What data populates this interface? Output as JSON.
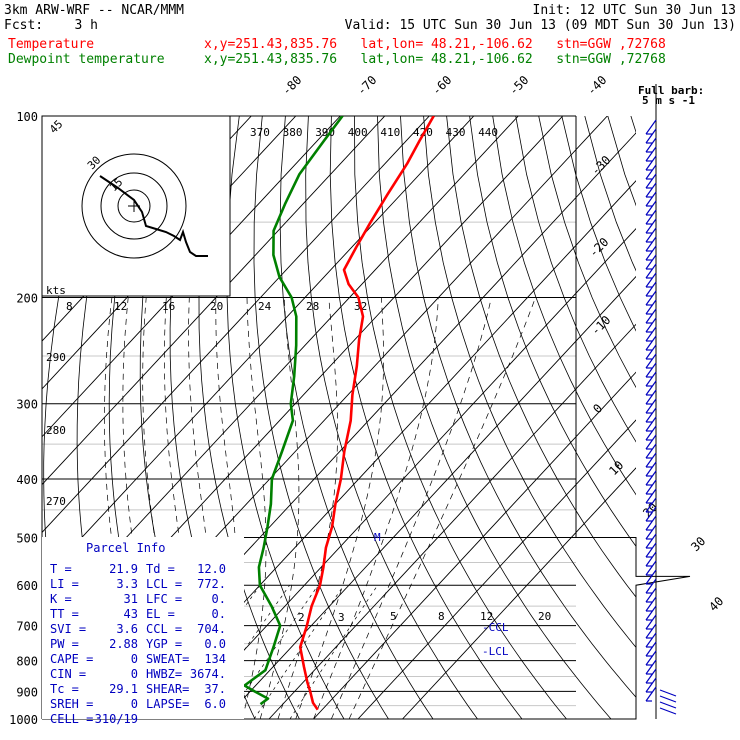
{
  "header": {
    "model": "3km ARW-WRF -- NCAR/MMM",
    "init": "Init: 12 UTC Sun 30 Jun 13",
    "fcst": "Fcst:    3 h",
    "valid": "Valid: 15 UTC Sun 30 Jun 13 (09 MDT Sun 30 Jun 13)",
    "temp_label": "Temperature",
    "dew_label": "Dewpoint temperature",
    "location": "x,y=251.43,835.76   lat,lon= 48.21,-106.62   stn=GGW ,72768"
  },
  "colors": {
    "temperature": "#ff0000",
    "dewpoint": "#008000",
    "parcel_text": "#0000c0",
    "barb": "#0000c0"
  },
  "chart_data": {
    "type": "line",
    "title": "",
    "xlabel": "",
    "ylabel": "",
    "y_scale": "log-pressure",
    "ylim": [
      1000,
      100
    ],
    "pressure_ticks": [
      100,
      200,
      300,
      400,
      500,
      600,
      700,
      800,
      900,
      1000
    ],
    "isotherm_labels": [
      "-80",
      "-70",
      "-60",
      "-50",
      "-40",
      "-30",
      "-20",
      "-10",
      "0",
      "10",
      "20",
      "30",
      "40"
    ],
    "theta_labels": [
      "370",
      "380",
      "390",
      "400",
      "410",
      "420",
      "430",
      "440"
    ],
    "theta_left_labels": [
      "290",
      "280",
      "270"
    ],
    "mixing_ratio_labels": [
      "2",
      "3",
      "5",
      "8",
      "12",
      "20"
    ],
    "hodograph": {
      "kts_label": "kts",
      "speed_labels": [
        "8",
        "12",
        "16",
        "20",
        "24",
        "28",
        "32"
      ],
      "ring_labels": [
        "15",
        "30",
        "45"
      ]
    },
    "lcl_labels": [
      "CCL",
      "LCL"
    ],
    "barb_header": [
      "Full barb",
      "5 m s"
    ],
    "series": [
      {
        "name": "Temperature",
        "color": "#ff0000",
        "points": [
          [
            965,
            29.0
          ],
          [
            940,
            26.5
          ],
          [
            900,
            23.5
          ],
          [
            870,
            21.0
          ],
          [
            820,
            17.0
          ],
          [
            760,
            12.0
          ],
          [
            700,
            9.0
          ],
          [
            650,
            6.0
          ],
          [
            600,
            3.5
          ],
          [
            560,
            0.5
          ],
          [
            520,
            -3.0
          ],
          [
            480,
            -6.0
          ],
          [
            440,
            -10.0
          ],
          [
            400,
            -14.0
          ],
          [
            360,
            -19.0
          ],
          [
            320,
            -24.0
          ],
          [
            290,
            -29.0
          ],
          [
            260,
            -34.0
          ],
          [
            235,
            -39.0
          ],
          [
            215,
            -43.0
          ],
          [
            200,
            -48.0
          ],
          [
            190,
            -53.0
          ],
          [
            180,
            -57.0
          ],
          [
            165,
            -59.0
          ],
          [
            150,
            -61.0
          ],
          [
            135,
            -63.0
          ],
          [
            120,
            -65.0
          ],
          [
            110,
            -67.0
          ],
          [
            100,
            -69.0
          ]
        ]
      },
      {
        "name": "Dewpoint temperature",
        "color": "#008000",
        "points": [
          [
            945,
            15.0
          ],
          [
            925,
            15.5
          ],
          [
            900,
            11.0
          ],
          [
            880,
            7.5
          ],
          [
            830,
            9.0
          ],
          [
            760,
            6.0
          ],
          [
            700,
            3.0
          ],
          [
            650,
            -3.0
          ],
          [
            600,
            -10.0
          ],
          [
            560,
            -14.0
          ],
          [
            520,
            -17.0
          ],
          [
            480,
            -20.5
          ],
          [
            440,
            -24.5
          ],
          [
            400,
            -29.5
          ],
          [
            360,
            -33.0
          ],
          [
            320,
            -37.0
          ],
          [
            300,
            -41.0
          ],
          [
            270,
            -46.0
          ],
          [
            240,
            -52.0
          ],
          [
            215,
            -58.0
          ],
          [
            200,
            -63.0
          ],
          [
            185,
            -70.0
          ],
          [
            170,
            -76.0
          ],
          [
            155,
            -81.0
          ],
          [
            140,
            -84.0
          ],
          [
            125,
            -87.0
          ],
          [
            110,
            -88.5
          ],
          [
            100,
            -89.5
          ]
        ]
      }
    ]
  },
  "parcel_info": {
    "title": "Parcel Info",
    "rows": [
      [
        "T  =",
        "21.9",
        "Td =",
        "12.0"
      ],
      [
        "LI =",
        "3.3",
        "LCL =",
        "772."
      ],
      [
        "K  =",
        "31",
        "LFC =",
        "0."
      ],
      [
        "TT =",
        "43",
        "EL  =",
        "0."
      ],
      [
        "SVI =",
        "3.6",
        "CCL =",
        "704."
      ],
      [
        "PW =",
        "2.88",
        "YGP =",
        "0.0"
      ],
      [
        "CAPE =",
        "0",
        "SWEAT=",
        "134"
      ],
      [
        "CIN =",
        "0",
        "HWBZ=",
        "3674."
      ],
      [
        "Tc =",
        "29.1",
        "SHEAR=",
        "37."
      ],
      [
        "SREH =",
        "0",
        "LAPSE=",
        "6.0"
      ],
      [
        "CELL =",
        "310/19",
        "",
        ""
      ]
    ]
  }
}
